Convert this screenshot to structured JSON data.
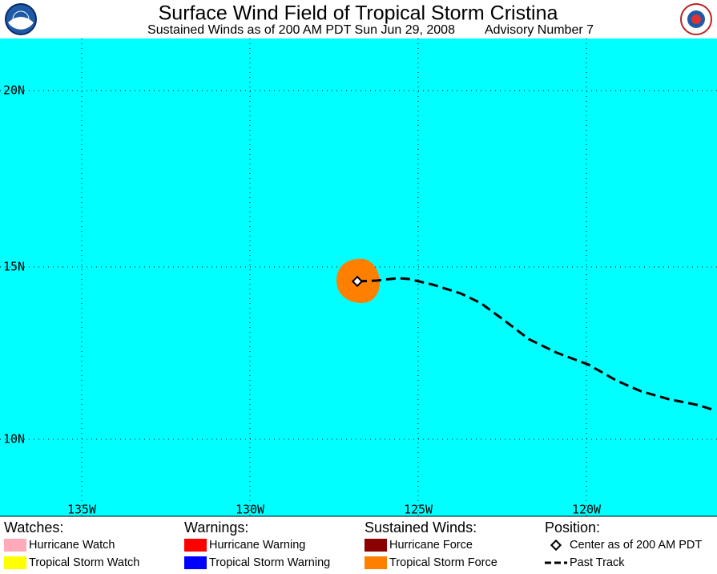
{
  "header": {
    "title": "Surface Wind Field of Tropical Storm Cristina",
    "subtitle": "Sustained Winds as of 200 AM PDT Sun Jun 29, 2008",
    "advisory": "Advisory Number 7"
  },
  "map": {
    "longitude_labels": [
      "135W",
      "130W",
      "125W",
      "120W"
    ],
    "latitude_labels": [
      "20N",
      "15N",
      "10N"
    ]
  },
  "legend": {
    "groups": [
      {
        "title": "Watches:",
        "items": [
          "Hurricane Watch",
          "Tropical Storm Watch"
        ]
      },
      {
        "title": "Warnings:",
        "items": [
          "Hurricane Warning",
          "Tropical Storm Warning"
        ]
      },
      {
        "title": "Sustained Winds:",
        "items": [
          "Hurricane Force",
          "Tropical Storm Force"
        ]
      },
      {
        "title": "Position:",
        "items": [
          "Center as of 200 AM PDT",
          "Past Track"
        ]
      }
    ]
  }
}
